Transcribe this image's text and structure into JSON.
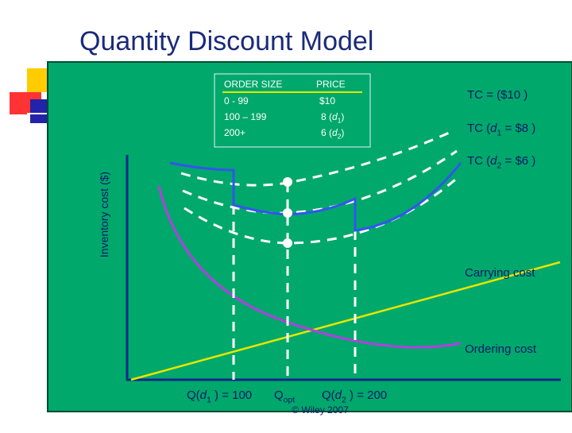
{
  "title": "Quantity Discount Model",
  "y_axis_label": "Inventory cost ($)",
  "price_table": {
    "header": [
      "ORDER SIZE",
      "PRICE"
    ],
    "rows": [
      {
        "order_size": "0 - 99",
        "price": [
          "$10"
        ]
      },
      {
        "order_size": "100 – 199",
        "price": [
          "8 (",
          "d",
          "1",
          ")"
        ]
      },
      {
        "order_size": "200+",
        "price": [
          "6 (",
          "d",
          "2",
          ")"
        ]
      }
    ]
  },
  "curve_labels": {
    "tc_10": [
      "TC = ($10 )"
    ],
    "tc_d1": [
      "TC (",
      "d",
      "1",
      " = $8 )"
    ],
    "tc_d2": [
      "TC (",
      "d",
      "2",
      " = $6 )"
    ],
    "carrying": [
      "Carrying cost"
    ],
    "ordering": [
      "Ordering cost"
    ]
  },
  "x_labels": {
    "q_d1": [
      "Q(",
      "d",
      "1",
      " ) = 100"
    ],
    "q_opt": [
      "Q",
      "opt"
    ],
    "q_d2": [
      "Q(",
      "d",
      "2",
      " ) = 200"
    ]
  },
  "footer": "© Wiley 2007"
}
